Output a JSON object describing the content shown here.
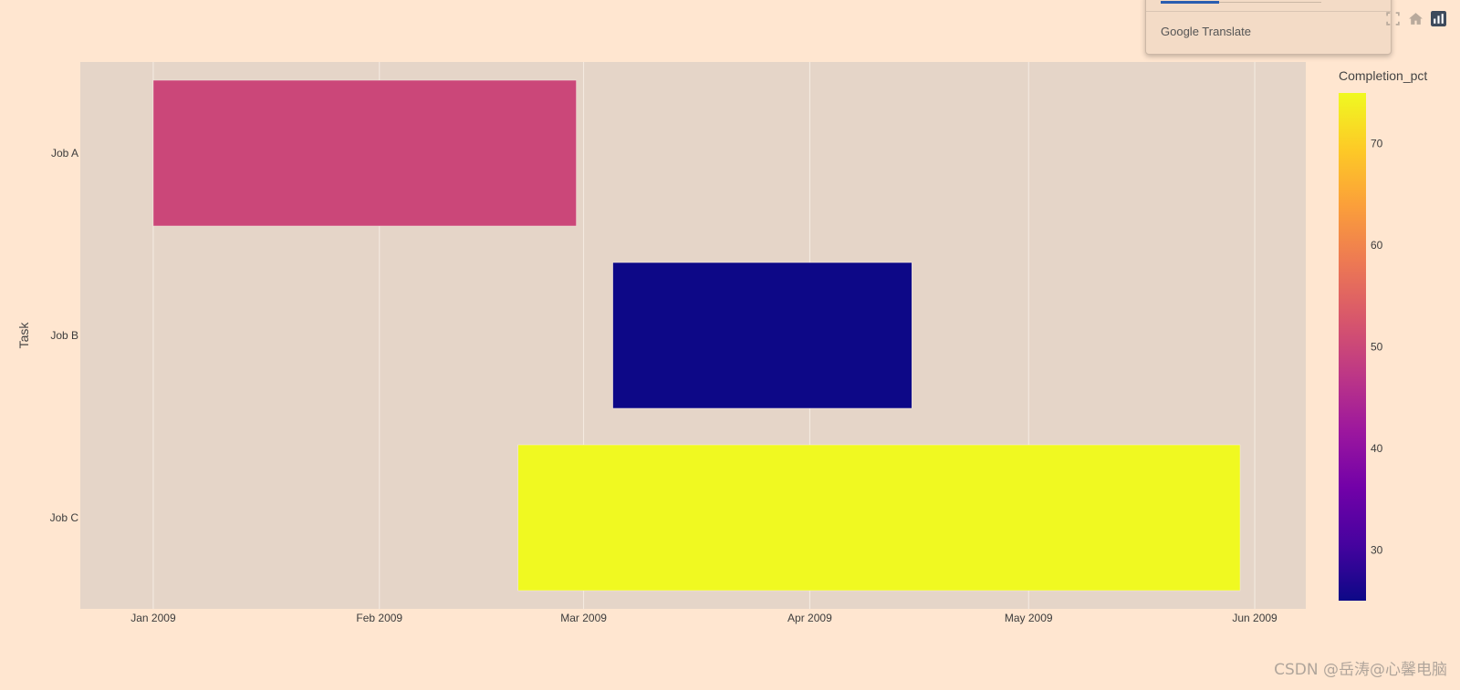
{
  "chart_data": {
    "type": "gantt",
    "ylabel": "Task",
    "xlabel": "",
    "x_range": [
      "2008-12-22",
      "2009-06-08"
    ],
    "x_ticks": [
      {
        "date": "2009-01-01",
        "label": "Jan 2009"
      },
      {
        "date": "2009-02-01",
        "label": "Feb 2009"
      },
      {
        "date": "2009-03-01",
        "label": "Mar 2009"
      },
      {
        "date": "2009-04-01",
        "label": "Apr 2009"
      },
      {
        "date": "2009-05-01",
        "label": "May 2009"
      },
      {
        "date": "2009-06-01",
        "label": "Jun 2009"
      }
    ],
    "tasks": [
      {
        "task": "Job A",
        "start": "2009-01-01",
        "finish": "2009-02-28",
        "completion_pct": 50
      },
      {
        "task": "Job B",
        "start": "2009-03-05",
        "finish": "2009-04-15",
        "completion_pct": 25
      },
      {
        "task": "Job C",
        "start": "2009-02-20",
        "finish": "2009-05-30",
        "completion_pct": 75
      }
    ],
    "colorbar": {
      "title": "Completion_pct",
      "range": [
        25,
        75
      ],
      "ticks": [
        30,
        40,
        50,
        60,
        70
      ],
      "colorscale": [
        "#0d0887",
        "#46039f",
        "#7201a8",
        "#9c179e",
        "#bd3786",
        "#d8576b",
        "#ed7953",
        "#fb9f3a",
        "#fdca26",
        "#f0f921"
      ]
    },
    "plot_bgcolor": "#e5d5c8",
    "paper_bgcolor": "#ffe6d0",
    "gridlines": true
  },
  "popup": {
    "brand": "Google Translate"
  },
  "modebar": {
    "icons": [
      "autoscale-icon",
      "home-icon",
      "plotly-logo-icon"
    ]
  },
  "watermark": "CSDN @岳涛@心馨电脑"
}
